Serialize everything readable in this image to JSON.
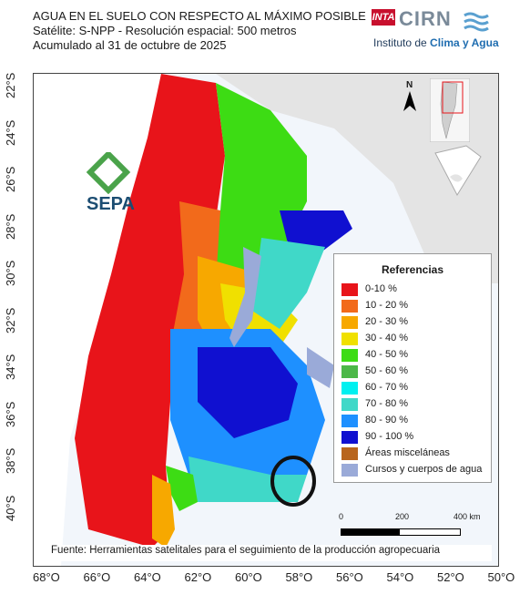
{
  "header": {
    "title": "AGUA EN EL SUELO CON RESPECTO AL MÁXIMO POSIBLE",
    "satellite": "Satélite: S-NPP - Resolución espacial: 500 metros",
    "date": "Acumulado al 31 de octubre de 2025"
  },
  "logos": {
    "inta": "INTA",
    "cirn": "CIRN",
    "institute_prefix": "Instituto de ",
    "institute_highlight": "Clima y Agua",
    "sepa": "SEPA"
  },
  "north_label": "N",
  "axes": {
    "y_ticks": [
      "22°S",
      "24°S",
      "26°S",
      "28°S",
      "30°S",
      "32°S",
      "34°S",
      "36°S",
      "38°S",
      "40°S"
    ],
    "x_ticks": [
      "68°O",
      "66°O",
      "64°O",
      "62°O",
      "60°O",
      "58°O",
      "56°O",
      "54°O",
      "52°O",
      "50°O"
    ]
  },
  "legend": {
    "title": "Referencias",
    "items": [
      {
        "label": "0-10 %",
        "color": "#e8141a"
      },
      {
        "label": "10 - 20 %",
        "color": "#f26a1b"
      },
      {
        "label": "20 - 30 %",
        "color": "#f7a800"
      },
      {
        "label": "30 - 40 %",
        "color": "#f0e000"
      },
      {
        "label": "40 - 50 %",
        "color": "#3ddc14"
      },
      {
        "label": "50 - 60 %",
        "color": "#4cb848"
      },
      {
        "label": "60 - 70 %",
        "color": "#00f0f0"
      },
      {
        "label": "70 - 80 %",
        "color": "#40d8c8"
      },
      {
        "label": "80 - 90 %",
        "color": "#1e90ff"
      },
      {
        "label": "90 - 100 %",
        "color": "#1010d0"
      },
      {
        "label": "Áreas misceláneas",
        "color": "#b8651e"
      },
      {
        "label": "Cursos y cuerpos de agua",
        "color": "#9aaad8"
      }
    ]
  },
  "scale": {
    "labels": [
      "0",
      "200",
      "400 km"
    ]
  },
  "source": "Fuente: Herramientas satelitales para el seguimiento de la producción agropecuaria"
}
